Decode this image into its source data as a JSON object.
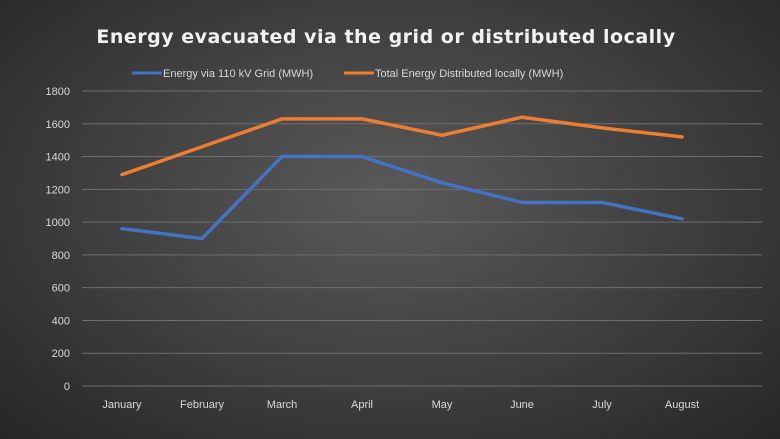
{
  "chart_data": {
    "type": "line",
    "title": "Energy evacuated via the grid or distributed locally",
    "xlabel": "",
    "ylabel": "",
    "categories": [
      "January",
      "February",
      "March",
      "April",
      "May",
      "June",
      "July",
      "August"
    ],
    "ylim": [
      0,
      1800
    ],
    "yticks": [
      0,
      200,
      400,
      600,
      800,
      1000,
      1200,
      1400,
      1600,
      1800
    ],
    "grid": true,
    "legend_position": "top",
    "series": [
      {
        "name": "Energy via 110 kV Grid (MWH)",
        "color": "#4472c4",
        "values": [
          960,
          900,
          1400,
          1400,
          1240,
          1120,
          1120,
          1020
        ]
      },
      {
        "name": "Total Energy Distributed locally (MWH)",
        "color": "#ed7d31",
        "values": [
          1290,
          1460,
          1630,
          1630,
          1530,
          1640,
          1575,
          1520
        ]
      }
    ]
  }
}
